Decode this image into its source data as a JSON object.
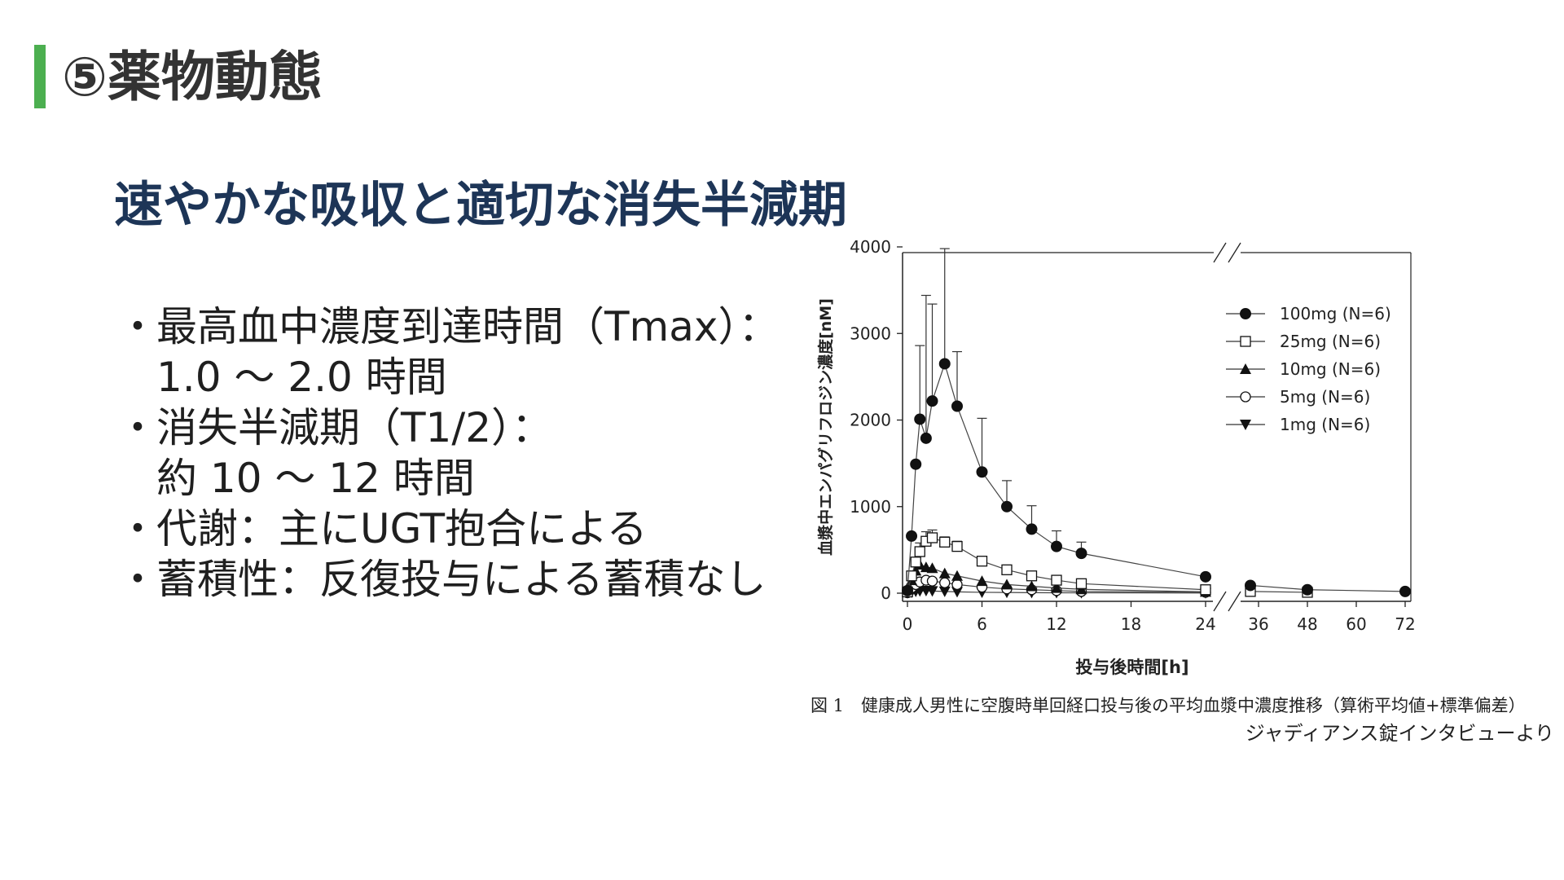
{
  "slide": {
    "title": "⑤薬物動態",
    "accent_color": "#4caf50",
    "subtitle": "速やかな吸収と適切な消失半減期",
    "bullets": [
      [
        "最高血中濃度到達時間（Tmax）：",
        "1.0 ～ 2.0 時間"
      ],
      [
        "消失半減期（T1/2）：",
        "約 10 ～ 12 時間"
      ],
      [
        "代謝：主にUGT抱合による"
      ],
      [
        "蓄積性：反復投与による蓄積なし"
      ]
    ],
    "caption": "図 1　健康成人男性に空腹時単回経口投与後の平均血漿中濃度推移（算術平均値+標準偏差）",
    "source": "ジャディアンス錠インタビューより"
  },
  "chart_data": {
    "type": "line",
    "xlabel": "投与後時間[h]",
    "ylabel": "血漿中エンパグリフロジン濃度[nM]",
    "x_ticks": [
      0,
      6,
      12,
      18,
      24,
      36,
      48,
      60,
      72
    ],
    "y_ticks": [
      0,
      1000,
      2000,
      3000,
      4000
    ],
    "ylim": [
      0,
      4000
    ],
    "x_axis_break": [
      24,
      36
    ],
    "legend_position": "top-right",
    "series": [
      {
        "name": "100mg (N=6)",
        "marker": "filled-circle",
        "x": [
          0,
          0.33,
          0.67,
          1,
          1.5,
          2,
          3,
          4,
          6,
          8,
          10,
          12,
          14,
          24,
          34,
          48,
          72
        ],
        "y": [
          30,
          660,
          1490,
          2010,
          1790,
          2220,
          2650,
          2160,
          1400,
          1000,
          740,
          540,
          460,
          190,
          90,
          40,
          20
        ],
        "sd": [
          0,
          0,
          0,
          850,
          1650,
          1120,
          1330,
          630,
          620,
          300,
          270,
          180,
          130,
          0,
          0,
          0,
          0
        ]
      },
      {
        "name": "25mg (N=6)",
        "marker": "open-square",
        "x": [
          0,
          0.33,
          0.67,
          1,
          1.5,
          2,
          3,
          4,
          6,
          8,
          10,
          12,
          14,
          24,
          34,
          48
        ],
        "y": [
          15,
          200,
          360,
          480,
          600,
          640,
          590,
          540,
          370,
          270,
          200,
          150,
          110,
          40,
          20,
          10
        ],
        "sd": [
          0,
          0,
          0,
          100,
          110,
          90,
          60,
          60,
          0,
          0,
          0,
          0,
          0,
          0,
          0,
          0
        ]
      },
      {
        "name": "10mg (N=6)",
        "marker": "filled-triangle-up",
        "x": [
          0,
          0.33,
          0.67,
          1,
          1.5,
          2,
          3,
          4,
          6,
          8,
          10,
          12,
          14,
          24
        ],
        "y": [
          10,
          150,
          260,
          330,
          300,
          290,
          230,
          200,
          140,
          100,
          80,
          60,
          45,
          15
        ]
      },
      {
        "name": "5mg (N=6)",
        "marker": "open-circle",
        "x": [
          0,
          0.33,
          0.67,
          1,
          1.5,
          2,
          3,
          4,
          6,
          8,
          10,
          12,
          14,
          24
        ],
        "y": [
          5,
          60,
          100,
          130,
          150,
          140,
          120,
          100,
          70,
          50,
          40,
          30,
          20,
          10
        ]
      },
      {
        "name": "1mg (N=6)",
        "marker": "filled-triangle-down",
        "x": [
          0,
          0.33,
          0.67,
          1,
          1.5,
          2,
          3,
          4,
          6,
          8,
          10,
          12,
          14,
          24
        ],
        "y": [
          2,
          10,
          20,
          25,
          28,
          25,
          20,
          15,
          10,
          8,
          6,
          5,
          4,
          2
        ]
      }
    ]
  }
}
